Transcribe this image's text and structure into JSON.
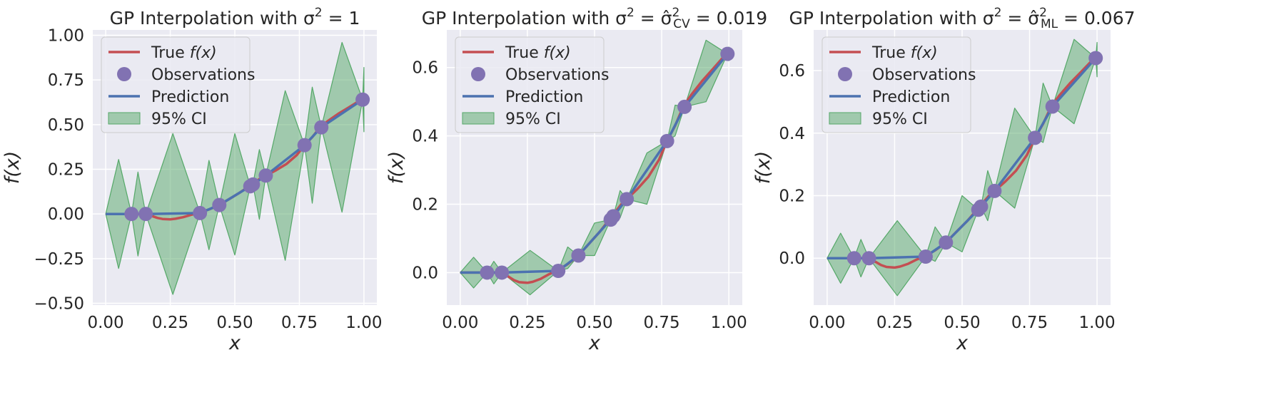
{
  "colors": {
    "background": "#eaeaf2",
    "grid": "#ffffff",
    "true_line": "#c44e52",
    "observations": "#8172b2",
    "prediction": "#4c72b0",
    "ci_fill": "#55a868",
    "legend_bg": "#eaeaf2",
    "legend_border": "#cccccc"
  },
  "shared": {
    "true_curve": {
      "x": [
        0.0,
        0.05,
        0.1,
        0.13,
        0.15,
        0.18,
        0.2,
        0.22,
        0.25,
        0.27,
        0.3,
        0.33,
        0.36,
        0.4,
        0.44,
        0.48,
        0.52,
        0.56,
        0.6,
        0.62,
        0.66,
        0.7,
        0.74,
        0.77,
        0.8,
        0.83,
        0.86,
        0.9,
        0.94,
        0.99
      ],
      "y": [
        0.0,
        0.0,
        0.0,
        0.0,
        0.0,
        -0.012,
        -0.022,
        -0.028,
        -0.03,
        -0.027,
        -0.018,
        -0.005,
        0.005,
        0.025,
        0.05,
        0.085,
        0.12,
        0.16,
        0.2,
        0.215,
        0.245,
        0.28,
        0.33,
        0.385,
        0.43,
        0.485,
        0.52,
        0.56,
        0.595,
        0.64
      ]
    },
    "observations": {
      "x": [
        0.1,
        0.155,
        0.365,
        0.44,
        0.56,
        0.57,
        0.62,
        0.77,
        0.835,
        0.995
      ],
      "y": [
        0.0,
        0.0,
        0.005,
        0.05,
        0.155,
        0.165,
        0.215,
        0.385,
        0.485,
        0.64
      ]
    },
    "prediction": {
      "x": [
        0.0,
        0.1,
        0.155,
        0.365,
        0.44,
        0.56,
        0.57,
        0.62,
        0.77,
        0.835,
        0.995
      ],
      "y": [
        0.0,
        0.0,
        0.0,
        0.005,
        0.05,
        0.155,
        0.165,
        0.215,
        0.385,
        0.485,
        0.64
      ]
    },
    "legend": [
      "True",
      "Observations",
      "Prediction",
      "95% CI"
    ],
    "legend_fx": "f(x)",
    "xlabel": "x",
    "ylabel": "f(x)"
  },
  "chart_data": [
    {
      "type": "line",
      "title_prefix": "GP Interpolation with σ",
      "title_suffix": " = 1",
      "xlabel": "x",
      "ylabel": "f(x)",
      "xlim": [
        -0.05,
        1.05
      ],
      "ylim": [
        -0.51,
        1.03
      ],
      "xticks": [
        "0.00",
        "0.25",
        "0.50",
        "0.75",
        "1.00"
      ],
      "yticks": [
        "−0.50",
        "−0.25",
        "0.00",
        "0.25",
        "0.50",
        "0.75",
        "1.00"
      ],
      "legend_position": "upper-left",
      "series": [
        {
          "name": "True f(x)",
          "ref": "true_curve"
        },
        {
          "name": "Observations",
          "ref": "observations"
        },
        {
          "name": "Prediction",
          "ref": "prediction"
        },
        {
          "name": "95% CI",
          "x": [
            0.0,
            0.05,
            0.1,
            0.125,
            0.155,
            0.26,
            0.365,
            0.4,
            0.44,
            0.5,
            0.56,
            0.565,
            0.57,
            0.595,
            0.62,
            0.695,
            0.77,
            0.8,
            0.835,
            0.915,
            0.995,
            1.0
          ],
          "upper": [
            0.0,
            0.305,
            0.0,
            0.235,
            0.0,
            0.45,
            0.005,
            0.3,
            0.05,
            0.45,
            0.155,
            0.165,
            0.165,
            0.36,
            0.215,
            0.69,
            0.385,
            0.71,
            0.485,
            0.96,
            0.64,
            0.82
          ],
          "lower": [
            0.0,
            -0.305,
            0.0,
            -0.235,
            0.0,
            -0.45,
            0.005,
            -0.2,
            0.05,
            -0.23,
            0.155,
            0.165,
            0.165,
            -0.03,
            0.215,
            -0.26,
            0.385,
            0.06,
            0.485,
            0.01,
            0.64,
            0.46
          ]
        }
      ]
    },
    {
      "type": "line",
      "title_prefix": "GP Interpolation with σ",
      "title_mid": " = σ̂",
      "title_sub": "CV",
      "title_suffix": " = 0.019",
      "xlabel": "x",
      "ylabel": "f(x)",
      "xlim": [
        -0.05,
        1.05
      ],
      "ylim": [
        -0.095,
        0.71
      ],
      "xticks": [
        "0.00",
        "0.25",
        "0.50",
        "0.75",
        "1.00"
      ],
      "yticks": [
        "0.0",
        "0.2",
        "0.4",
        "0.6"
      ],
      "legend_position": "upper-left",
      "series": [
        {
          "name": "True f(x)",
          "ref": "true_curve"
        },
        {
          "name": "Observations",
          "ref": "observations"
        },
        {
          "name": "Prediction",
          "ref": "prediction"
        },
        {
          "name": "95% CI",
          "x": [
            0.0,
            0.05,
            0.1,
            0.125,
            0.155,
            0.26,
            0.365,
            0.4,
            0.44,
            0.5,
            0.56,
            0.565,
            0.57,
            0.595,
            0.62,
            0.695,
            0.77,
            0.8,
            0.835,
            0.915,
            0.995,
            1.0
          ],
          "upper": [
            0.0,
            0.045,
            0.0,
            0.033,
            0.0,
            0.065,
            0.005,
            0.075,
            0.05,
            0.145,
            0.155,
            0.165,
            0.165,
            0.24,
            0.215,
            0.35,
            0.385,
            0.49,
            0.485,
            0.68,
            0.64,
            0.66
          ],
          "lower": [
            0.0,
            -0.045,
            0.0,
            -0.033,
            0.0,
            -0.065,
            0.005,
            0.012,
            0.05,
            0.05,
            0.155,
            0.165,
            0.165,
            0.16,
            0.215,
            0.2,
            0.385,
            0.4,
            0.485,
            0.5,
            0.64,
            0.62
          ]
        }
      ]
    },
    {
      "type": "line",
      "title_prefix": "GP Interpolation with σ",
      "title_mid": " = σ̂",
      "title_sub": "ML",
      "title_suffix": " = 0.067",
      "xlabel": "x",
      "ylabel": "f(x)",
      "xlim": [
        -0.05,
        1.05
      ],
      "ylim": [
        -0.15,
        0.73
      ],
      "xticks": [
        "0.00",
        "0.25",
        "0.50",
        "0.75",
        "1.00"
      ],
      "yticks": [
        "0.0",
        "0.2",
        "0.4",
        "0.6"
      ],
      "legend_position": "upper-left",
      "series": [
        {
          "name": "True f(x)",
          "ref": "true_curve"
        },
        {
          "name": "Observations",
          "ref": "observations"
        },
        {
          "name": "Prediction",
          "ref": "prediction"
        },
        {
          "name": "95% CI",
          "x": [
            0.0,
            0.05,
            0.1,
            0.125,
            0.155,
            0.26,
            0.365,
            0.4,
            0.44,
            0.5,
            0.56,
            0.565,
            0.57,
            0.595,
            0.62,
            0.695,
            0.77,
            0.8,
            0.835,
            0.915,
            0.995,
            1.0
          ],
          "upper": [
            0.0,
            0.08,
            0.0,
            0.06,
            0.0,
            0.12,
            0.005,
            0.1,
            0.05,
            0.2,
            0.155,
            0.165,
            0.165,
            0.28,
            0.215,
            0.48,
            0.385,
            0.56,
            0.485,
            0.7,
            0.64,
            0.69
          ],
          "lower": [
            0.0,
            -0.08,
            0.0,
            -0.06,
            0.0,
            -0.12,
            0.005,
            -0.01,
            0.05,
            0.02,
            0.155,
            0.165,
            0.165,
            0.12,
            0.215,
            0.16,
            0.385,
            0.37,
            0.485,
            0.43,
            0.64,
            0.58
          ]
        }
      ]
    }
  ]
}
